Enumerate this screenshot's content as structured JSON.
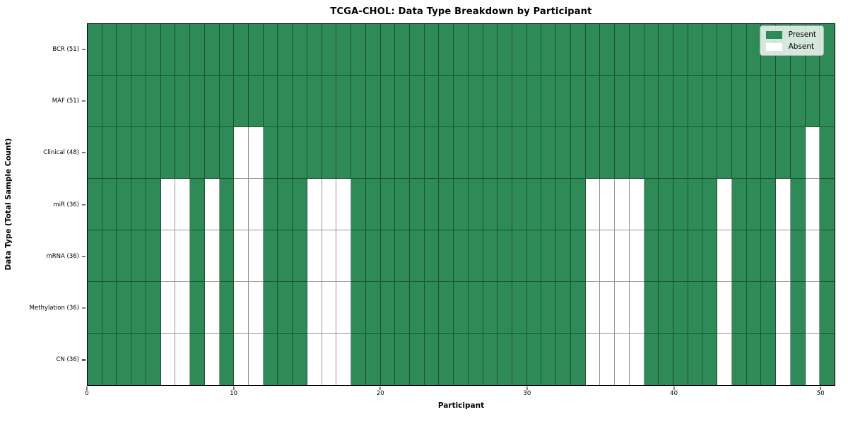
{
  "chart_data": {
    "type": "heatmap",
    "title": "TCGA-CHOL: Data Type Breakdown by Participant",
    "xlabel": "Participant",
    "ylabel": "Data Type (Total Sample Count)",
    "x_ticks": [
      0,
      10,
      20,
      30,
      40,
      50
    ],
    "x_range": [
      0,
      51
    ],
    "n_participants": 51,
    "cell_edges": true,
    "rows": [
      {
        "label": "BCR (51)",
        "total": 51,
        "absent_participants": []
      },
      {
        "label": "MAF (51)",
        "total": 51,
        "absent_participants": []
      },
      {
        "label": "Clinical (48)",
        "total": 48,
        "absent_participants": [
          10,
          11,
          49
        ]
      },
      {
        "label": "miR (36)",
        "total": 36,
        "absent_participants": [
          5,
          6,
          8,
          10,
          11,
          15,
          16,
          17,
          34,
          35,
          36,
          37,
          43,
          47,
          49
        ]
      },
      {
        "label": "mRNA (36)",
        "total": 36,
        "absent_participants": [
          5,
          6,
          8,
          10,
          11,
          15,
          16,
          17,
          34,
          35,
          36,
          37,
          43,
          47,
          49
        ]
      },
      {
        "label": "Methylation (36)",
        "total": 36,
        "absent_participants": [
          5,
          6,
          8,
          10,
          11,
          15,
          16,
          17,
          34,
          35,
          36,
          37,
          43,
          47,
          49
        ]
      },
      {
        "label": "CN (36)",
        "total": 36,
        "absent_participants": [
          5,
          6,
          8,
          10,
          11,
          15,
          16,
          17,
          34,
          35,
          36,
          37,
          43,
          47,
          49
        ]
      }
    ],
    "legend": {
      "position": "upper right",
      "items": [
        {
          "label": "Present",
          "color": "#2e8b57"
        },
        {
          "label": "Absent",
          "color": "#ffffff"
        }
      ]
    },
    "colors": {
      "present": "#2e8b57",
      "absent": "#ffffff",
      "edge": "rgba(0,0,0,0.42)",
      "spine": "#000000"
    }
  }
}
